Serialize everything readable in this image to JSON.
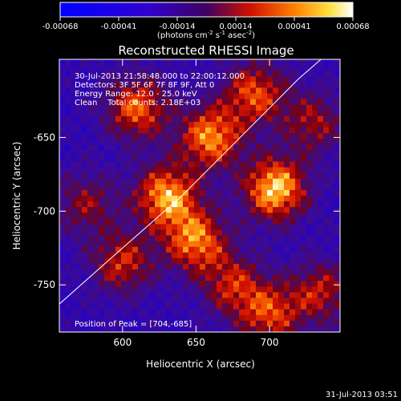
{
  "colorbar": {
    "ticks": [
      "-0.00068",
      "-0.00041",
      "-0.00014",
      "0.00014",
      "0.00041",
      "0.00068"
    ],
    "unit_pre": "(photons cm",
    "unit_exp1": "-2",
    "unit_mid1": " s",
    "unit_exp2": "-1",
    "unit_mid2": " asec",
    "unit_exp3": "-2",
    "unit_post": ")"
  },
  "chart_data": {
    "type": "heatmap",
    "title": "Reconstructed RHESSI Image",
    "xlabel": "Heliocentric X (arcsec)",
    "ylabel": "Heliocentric Y (arcsec)",
    "xlim": [
      557,
      748
    ],
    "ylim": [
      -782,
      -597
    ],
    "x_ticks": [
      "600",
      "650",
      "700"
    ],
    "y_ticks": [
      "-650",
      "-700",
      "-750"
    ],
    "x_tick_values": [
      600,
      650,
      700
    ],
    "y_tick_values": [
      -650,
      -700,
      -750
    ],
    "value_range": [
      -0.00068,
      0.00068
    ],
    "colormap": "rhessi-hot",
    "peak": [
      704,
      -685
    ],
    "info_lines": [
      "30-Jul-2013 21:58:48.000 to 22:00:12.000",
      "Detectors: 3F 5F 6F 7F 8F 9F, Att 0",
      "Energy Range: 12.0 - 25.0 keV",
      "Clean    Total counts: 2.18E+03"
    ],
    "peak_label": "Position of Peak = [704,-685]",
    "hot_spots": [
      {
        "x": 704,
        "y": -685,
        "strength": 1.0
      },
      {
        "x": 630,
        "y": -690,
        "strength": 0.9
      },
      {
        "x": 660,
        "y": -650,
        "strength": 0.85
      },
      {
        "x": 610,
        "y": -630,
        "strength": 0.75
      },
      {
        "x": 650,
        "y": -720,
        "strength": 0.8
      },
      {
        "x": 690,
        "y": -620,
        "strength": 0.7
      },
      {
        "x": 600,
        "y": -735,
        "strength": 0.6
      },
      {
        "x": 575,
        "y": -695,
        "strength": 0.45
      },
      {
        "x": 700,
        "y": -770,
        "strength": 0.65
      },
      {
        "x": 735,
        "y": -755,
        "strength": 0.55
      },
      {
        "x": 730,
        "y": -640,
        "strength": 0.5
      },
      {
        "x": 675,
        "y": -750,
        "strength": 0.55
      }
    ],
    "limb": [
      [
        557,
        -763
      ],
      [
        600,
        -725
      ],
      [
        640,
        -690
      ],
      [
        680,
        -650
      ],
      [
        720,
        -610
      ],
      [
        735,
        -597
      ]
    ]
  },
  "footer": {
    "timestamp": "31-Jul-2013 03:51"
  }
}
